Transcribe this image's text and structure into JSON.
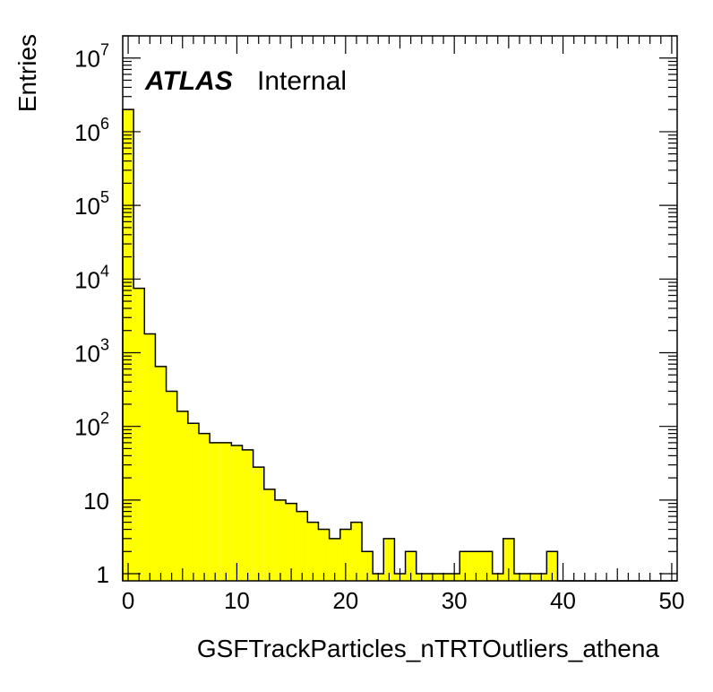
{
  "chart_data": {
    "type": "bar",
    "subtype": "histogram",
    "xlabel": "GSFTrackParticles_nTRTOutliers_athena",
    "ylabel": "Entries",
    "label_bold": "ATLAS",
    "label_text": "Internal",
    "xlim": [
      -0.5,
      50.5
    ],
    "ylim": [
      0.8,
      20000000
    ],
    "yscale": "log",
    "x_ticks": [
      0,
      10,
      20,
      30,
      40,
      50
    ],
    "x_tick_labels": [
      "0",
      "10",
      "20",
      "30",
      "40",
      "50"
    ],
    "y_ticks": [
      1,
      10,
      100,
      1000,
      10000,
      100000,
      1000000,
      10000000
    ],
    "y_tick_labels": [
      {
        "base": "1",
        "exp": ""
      },
      {
        "base": "10",
        "exp": ""
      },
      {
        "base": "10",
        "exp": "2"
      },
      {
        "base": "10",
        "exp": "3"
      },
      {
        "base": "10",
        "exp": "4"
      },
      {
        "base": "10",
        "exp": "5"
      },
      {
        "base": "10",
        "exp": "6"
      },
      {
        "base": "10",
        "exp": "7"
      }
    ],
    "bin_width": 1,
    "bin_centers": [
      0,
      1,
      2,
      3,
      4,
      5,
      6,
      7,
      8,
      9,
      10,
      11,
      12,
      13,
      14,
      15,
      16,
      17,
      18,
      19,
      20,
      21,
      22,
      23,
      24,
      25,
      26,
      27,
      28,
      29,
      30,
      31,
      32,
      33,
      34,
      35,
      36,
      37,
      38,
      39,
      40,
      41,
      42,
      43,
      44,
      45,
      46,
      47,
      48,
      49,
      50
    ],
    "values": [
      2000000,
      7500,
      1800,
      650,
      300,
      160,
      110,
      80,
      60,
      60,
      55,
      48,
      28,
      14,
      10,
      9,
      7,
      5,
      4,
      3,
      4,
      5,
      2,
      1,
      3,
      1,
      2,
      1,
      1,
      1,
      1,
      2,
      2,
      2,
      1,
      3,
      1,
      1,
      1,
      2,
      0,
      0,
      0,
      0,
      0,
      0,
      0,
      0,
      0,
      0,
      0
    ],
    "fill_color": "#ffff00",
    "line_color": "#000000",
    "grid": false
  }
}
